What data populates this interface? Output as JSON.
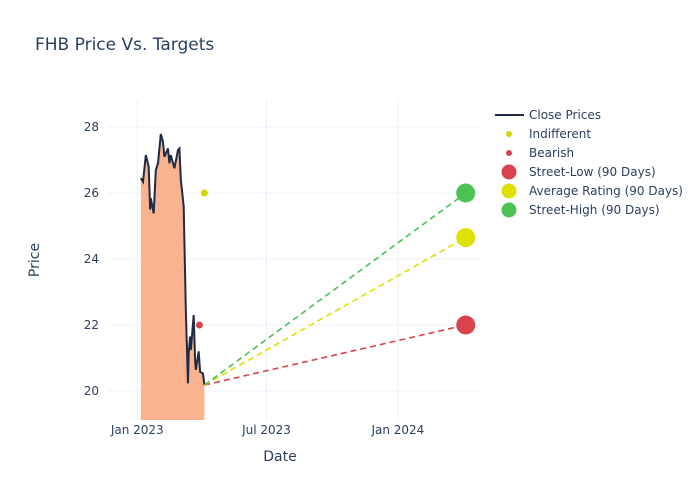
{
  "chart_data": {
    "type": "line",
    "title": "FHB Price Vs. Targets",
    "xlabel": "Date",
    "ylabel": "Price",
    "xlim": [
      "2022-11-21",
      "2024-04-25"
    ],
    "ylim": [
      19.12,
      28.82
    ],
    "grid": true,
    "legend_position": "right",
    "x_ticks": [
      {
        "date": "2023-01-01",
        "label": "Jan 2023"
      },
      {
        "date": "2023-07-01",
        "label": "Jul 2023"
      },
      {
        "date": "2024-01-01",
        "label": "Jan 2024"
      }
    ],
    "y_ticks": [
      20,
      22,
      24,
      26,
      28
    ],
    "close_prices": {
      "name": "Close Prices",
      "color": "#1f2a44",
      "fill_color": "#f9b38f",
      "x": [
        "2023-01-06",
        "2023-01-09",
        "2023-01-13",
        "2023-01-17",
        "2023-01-19",
        "2023-01-20",
        "2023-01-24",
        "2023-01-27",
        "2023-01-30",
        "2023-02-03",
        "2023-02-06",
        "2023-02-08",
        "2023-02-13",
        "2023-02-15",
        "2023-02-17",
        "2023-02-22",
        "2023-02-27",
        "2023-03-01",
        "2023-03-03",
        "2023-03-07",
        "2023-03-10",
        "2023-03-13",
        "2023-03-14",
        "2023-03-16",
        "2023-03-17",
        "2023-03-21",
        "2023-03-23",
        "2023-03-24",
        "2023-03-28",
        "2023-03-30",
        "2023-04-03",
        "2023-04-05"
      ],
      "y": [
        26.45,
        26.34,
        27.15,
        26.8,
        25.5,
        25.84,
        25.38,
        26.7,
        26.9,
        27.79,
        27.55,
        27.1,
        27.35,
        26.9,
        27.15,
        26.75,
        27.3,
        27.35,
        26.4,
        25.6,
        22.45,
        20.23,
        21.14,
        21.65,
        21.24,
        22.3,
        20.94,
        20.64,
        21.2,
        20.58,
        20.53,
        20.18
      ]
    },
    "ratings": [
      {
        "name": "Indifferent",
        "color": "#d4d400",
        "x": "2023-04-05",
        "y": 26
      },
      {
        "name": "Bearish",
        "color": "#d9434e",
        "x": "2023-03-29",
        "y": 22
      }
    ],
    "targets": [
      {
        "name": "Street-Low (90 Days)",
        "color": "#d9434e",
        "x": "2024-04-05",
        "y": 22
      },
      {
        "name": "Average Rating (90 Days)",
        "color": "#dfdf00",
        "x": "2024-04-05",
        "y": 24.65
      },
      {
        "name": "Street-High (90 Days)",
        "color": "#4cc254",
        "x": "2024-04-05",
        "y": 26
      }
    ],
    "target_line_start": {
      "x": "2023-04-05",
      "y": 20.18
    }
  }
}
